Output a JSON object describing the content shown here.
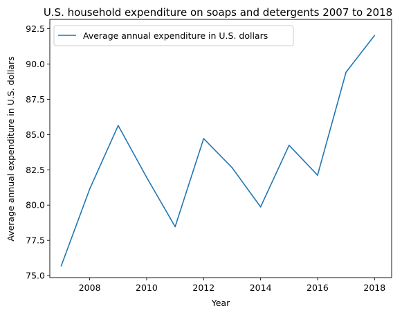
{
  "chart_data": {
    "type": "line",
    "title": "U.S. household expenditure on soaps and detergents 2007 to 2018",
    "xlabel": "Year",
    "ylabel": "Average annual expenditure in U.S. dollars",
    "xlim": [
      2006.6,
      2018.6
    ],
    "ylim": [
      74.86,
      93.16
    ],
    "x_ticks": [
      2008,
      2010,
      2012,
      2014,
      2016,
      2018
    ],
    "y_ticks": [
      75.0,
      77.5,
      80.0,
      82.5,
      85.0,
      87.5,
      90.0,
      92.5
    ],
    "y_tick_labels": [
      "75.0",
      "77.5",
      "80.0",
      "82.5",
      "85.0",
      "87.5",
      "90.0",
      "92.5"
    ],
    "grid": false,
    "legend_position": "top-left",
    "series": [
      {
        "name": "Average annual expenditure in U.S. dollars",
        "color": "#1f77b4",
        "x": [
          2007,
          2008,
          2009,
          2010,
          2011,
          2012,
          2013,
          2014,
          2015,
          2016,
          2017,
          2018
        ],
        "values": [
          75.69,
          81.14,
          85.64,
          81.96,
          78.47,
          84.71,
          82.65,
          79.87,
          84.24,
          82.12,
          89.42,
          92.02
        ]
      }
    ]
  }
}
